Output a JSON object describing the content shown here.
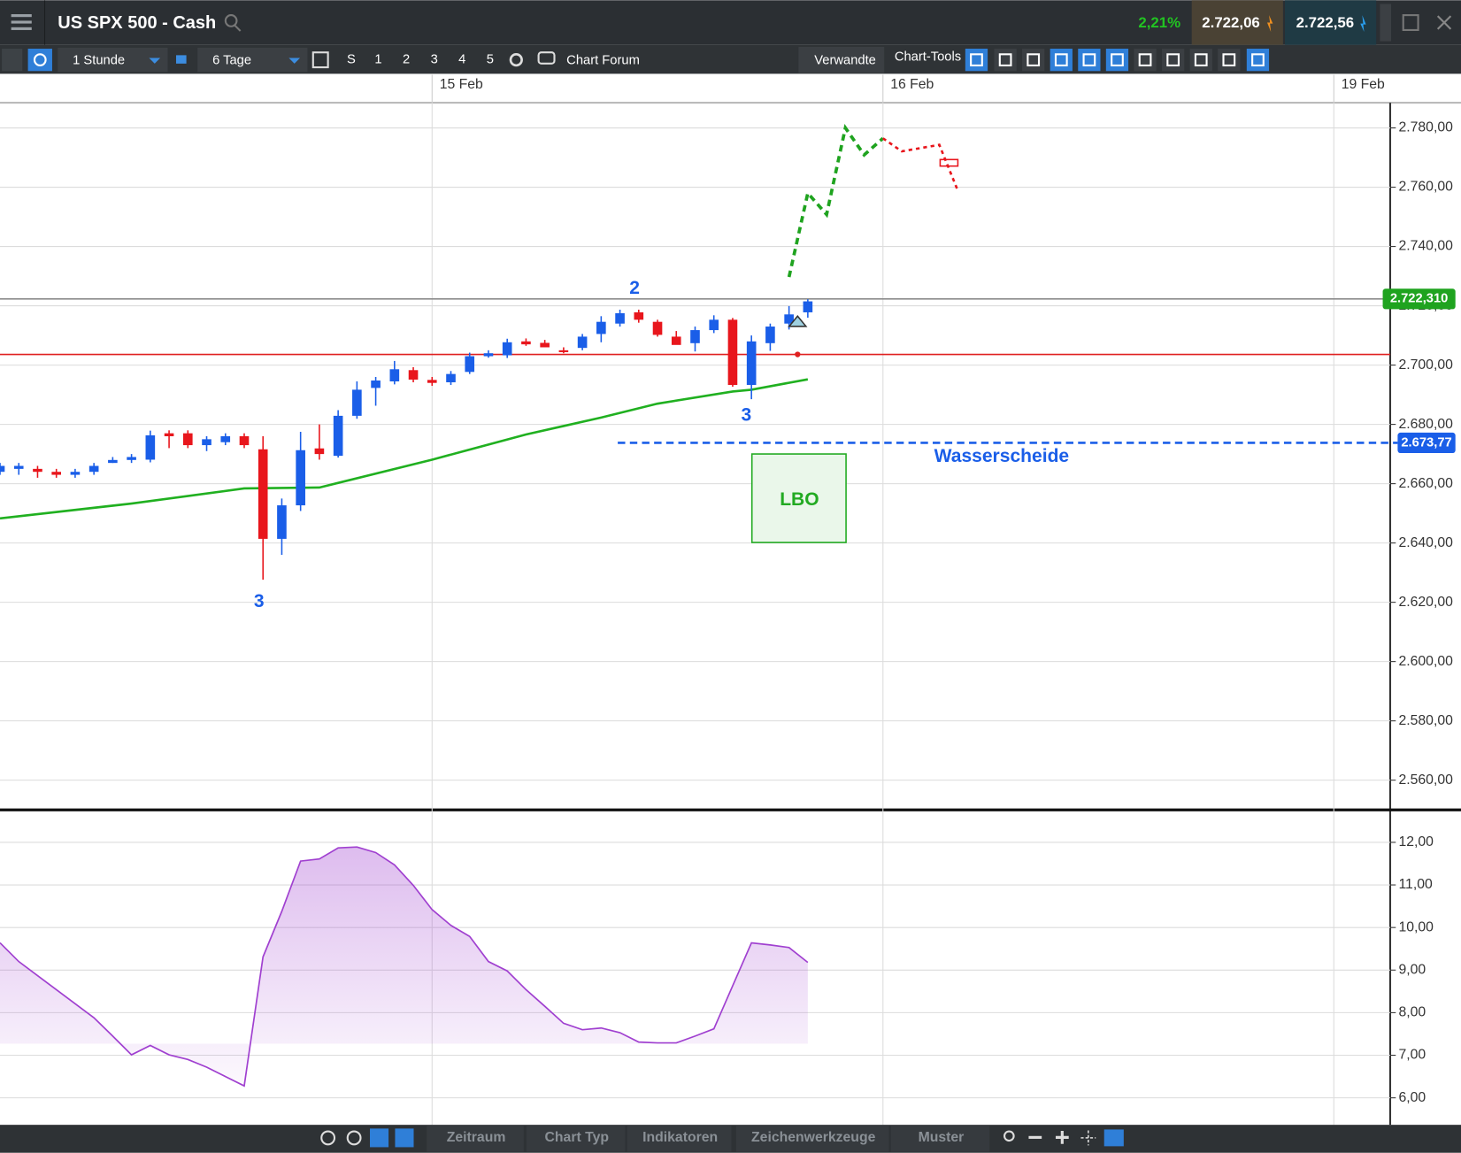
{
  "header": {
    "title": "US SPX 500 - Cash",
    "change": "2,21%",
    "bid": "2.722,06",
    "ask": "2.722,56"
  },
  "toolbar": {
    "interval": "1 Stunde",
    "range": "6 Tage",
    "buttons": [
      "S",
      "1",
      "2",
      "3",
      "4",
      "5"
    ],
    "forum": "Chart Forum",
    "related": "Verwandte",
    "tools": "Chart-Tools"
  },
  "chart_data": [
    {
      "type": "candlestick",
      "xlim": [
        0,
        74
      ],
      "xticks": [
        {
          "value": 23,
          "label": "15 Feb"
        },
        {
          "value": 47,
          "label": "16 Feb"
        },
        {
          "value": 71,
          "label": "19 Feb"
        }
      ],
      "ylim": [
        2550.6,
        2788.5
      ],
      "yticks": [
        {
          "value": 2560,
          "label": "2.560,00"
        },
        {
          "value": 2580,
          "label": "2.580,00"
        },
        {
          "value": 2600,
          "label": "2.600,00"
        },
        {
          "value": 2620,
          "label": "2.620,00"
        },
        {
          "value": 2640,
          "label": "2.640,00"
        },
        {
          "value": 2660,
          "label": "2.660,00"
        },
        {
          "value": 2680,
          "label": "2.680,00"
        },
        {
          "value": 2700,
          "label": "2.700,00"
        },
        {
          "value": 2720,
          "label": "2.720,00"
        },
        {
          "value": 2740,
          "label": "2.740,00"
        },
        {
          "value": 2760,
          "label": "2.760,00"
        },
        {
          "value": 2780,
          "label": "2.780,00"
        }
      ],
      "grid": true,
      "up_color": "#1a5ee8",
      "down_color": "#e8161c",
      "open": [
        2664,
        2665,
        2665,
        2664,
        2663,
        2664,
        2667,
        2668,
        2668.1,
        2677,
        2677,
        2673,
        2674,
        2676,
        2671.6,
        2641.4,
        2652.7,
        2671.9,
        2669.4,
        2682.9,
        2692.3,
        2694.5,
        2698.3,
        2695,
        2694.2,
        2697.7,
        2703,
        2703.3,
        2708,
        2707.5,
        2705,
        2705.8,
        2710.5,
        2714,
        2717.8,
        2714.6,
        2709.6,
        2707.4,
        2711.8,
        2715.3,
        2693.3,
        2707.4,
        2714,
        2717.8
      ],
      "high": [
        2667,
        2667,
        2666,
        2665,
        2665,
        2667,
        2669,
        2670,
        2677.9,
        2678,
        2678,
        2676,
        2677,
        2677,
        2676,
        2655,
        2677.5,
        2680,
        2684.8,
        2694.5,
        2696,
        2701.4,
        2699.3,
        2696,
        2698,
        2704.2,
        2705,
        2708.9,
        2709,
        2708.5,
        2706,
        2710.5,
        2716.5,
        2718.7,
        2718.7,
        2715.3,
        2711.5,
        2713,
        2716.8,
        2715.9,
        2710,
        2714,
        2719.9,
        2722.2
      ],
      "low": [
        2663,
        2663,
        2662,
        2662,
        2662,
        2663,
        2667,
        2667,
        2667.2,
        2672,
        2672,
        2671,
        2673,
        2672,
        2627.6,
        2636,
        2650.8,
        2668.1,
        2668.8,
        2681.9,
        2686.3,
        2693.5,
        2694.2,
        2693,
        2693.3,
        2697,
        2702.5,
        2702.4,
        2706.5,
        2706,
        2704,
        2705,
        2707.7,
        2713,
        2714.3,
        2709.6,
        2708,
        2704.6,
        2710.8,
        2692.7,
        2688.5,
        2704.8,
        2712,
        2716
      ],
      "close": [
        2666,
        2666,
        2664,
        2663,
        2664,
        2666,
        2668,
        2669,
        2676.3,
        2676,
        2673,
        2675,
        2676,
        2673,
        2641.4,
        2652.7,
        2671.3,
        2670,
        2682.9,
        2691.7,
        2694.8,
        2698.6,
        2695.1,
        2694,
        2697,
        2703,
        2704,
        2707.7,
        2707,
        2706,
        2704.5,
        2709.6,
        2714.6,
        2717.5,
        2715.3,
        2710.2,
        2706.8,
        2711.8,
        2715.3,
        2693.3,
        2708,
        2713,
        2717.1,
        2721.5
      ],
      "ma": {
        "color": "#20b020",
        "x": [
          0,
          7,
          13,
          17,
          23,
          28,
          32,
          35,
          39,
          40,
          43
        ],
        "values": [
          2648.3,
          2653.3,
          2658.4,
          2658.7,
          2668.1,
          2676.6,
          2682.3,
          2687,
          2691.1,
          2691.7,
          2695.2
        ]
      },
      "forecasts": [
        {
          "color": "#1fa31f",
          "x": [
            42,
            43,
            44,
            45,
            46,
            47
          ],
          "values": [
            2729.7,
            2758,
            2750.8,
            2780,
            2770.9,
            2776.5
          ]
        },
        {
          "color": "#e8161c",
          "x": [
            47,
            48,
            50,
            51
          ],
          "values": [
            2776.5,
            2772.1,
            2774.3,
            2758.6
          ]
        }
      ],
      "lines": [
        {
          "value": 2703.6,
          "color": "#e02020"
        },
        {
          "value": 2722.31,
          "color": "#8c8c8c",
          "label": "2.722,310",
          "label_color": "#1fa31f"
        },
        {
          "value": 2673.77,
          "color": "#1a5ee8",
          "label": "2.673,77",
          "label_color": "#1a5ee8",
          "name": "Wasserscheide"
        }
      ],
      "annotations": [
        "2",
        "3",
        "3",
        "LBO"
      ]
    },
    {
      "type": "area",
      "color": "#a040d0",
      "xlim": [
        0,
        74
      ],
      "ylim": [
        5.41,
        12.74
      ],
      "yticks": [
        {
          "value": 6,
          "label": "6,00"
        },
        {
          "value": 7,
          "label": "7,00"
        },
        {
          "value": 8,
          "label": "8,00"
        },
        {
          "value": 9,
          "label": "9,00"
        },
        {
          "value": 10,
          "label": "10,00"
        },
        {
          "value": 11,
          "label": "11,00"
        },
        {
          "value": 12,
          "label": "12,00"
        }
      ],
      "grid": true,
      "values": [
        9.64,
        9.2,
        8.87,
        8.54,
        8.21,
        7.88,
        7.45,
        7.01,
        7.23,
        7.01,
        6.9,
        6.72,
        6.5,
        6.28,
        9.31,
        10.38,
        11.56,
        11.61,
        11.87,
        11.89,
        11.76,
        11.47,
        10.99,
        10.42,
        10.05,
        9.79,
        9.2,
        8.98,
        8.54,
        8.15,
        7.75,
        7.6,
        7.64,
        7.53,
        7.31,
        7.29,
        7.29,
        7.45,
        7.62,
        8.63,
        9.64,
        9.59,
        9.53,
        9.18
      ]
    }
  ],
  "bottom_bar": {
    "tabs": [
      "Zeitraum",
      "Chart Typ",
      "Indikatoren",
      "Zeichenwerkzeuge",
      "Muster"
    ]
  }
}
